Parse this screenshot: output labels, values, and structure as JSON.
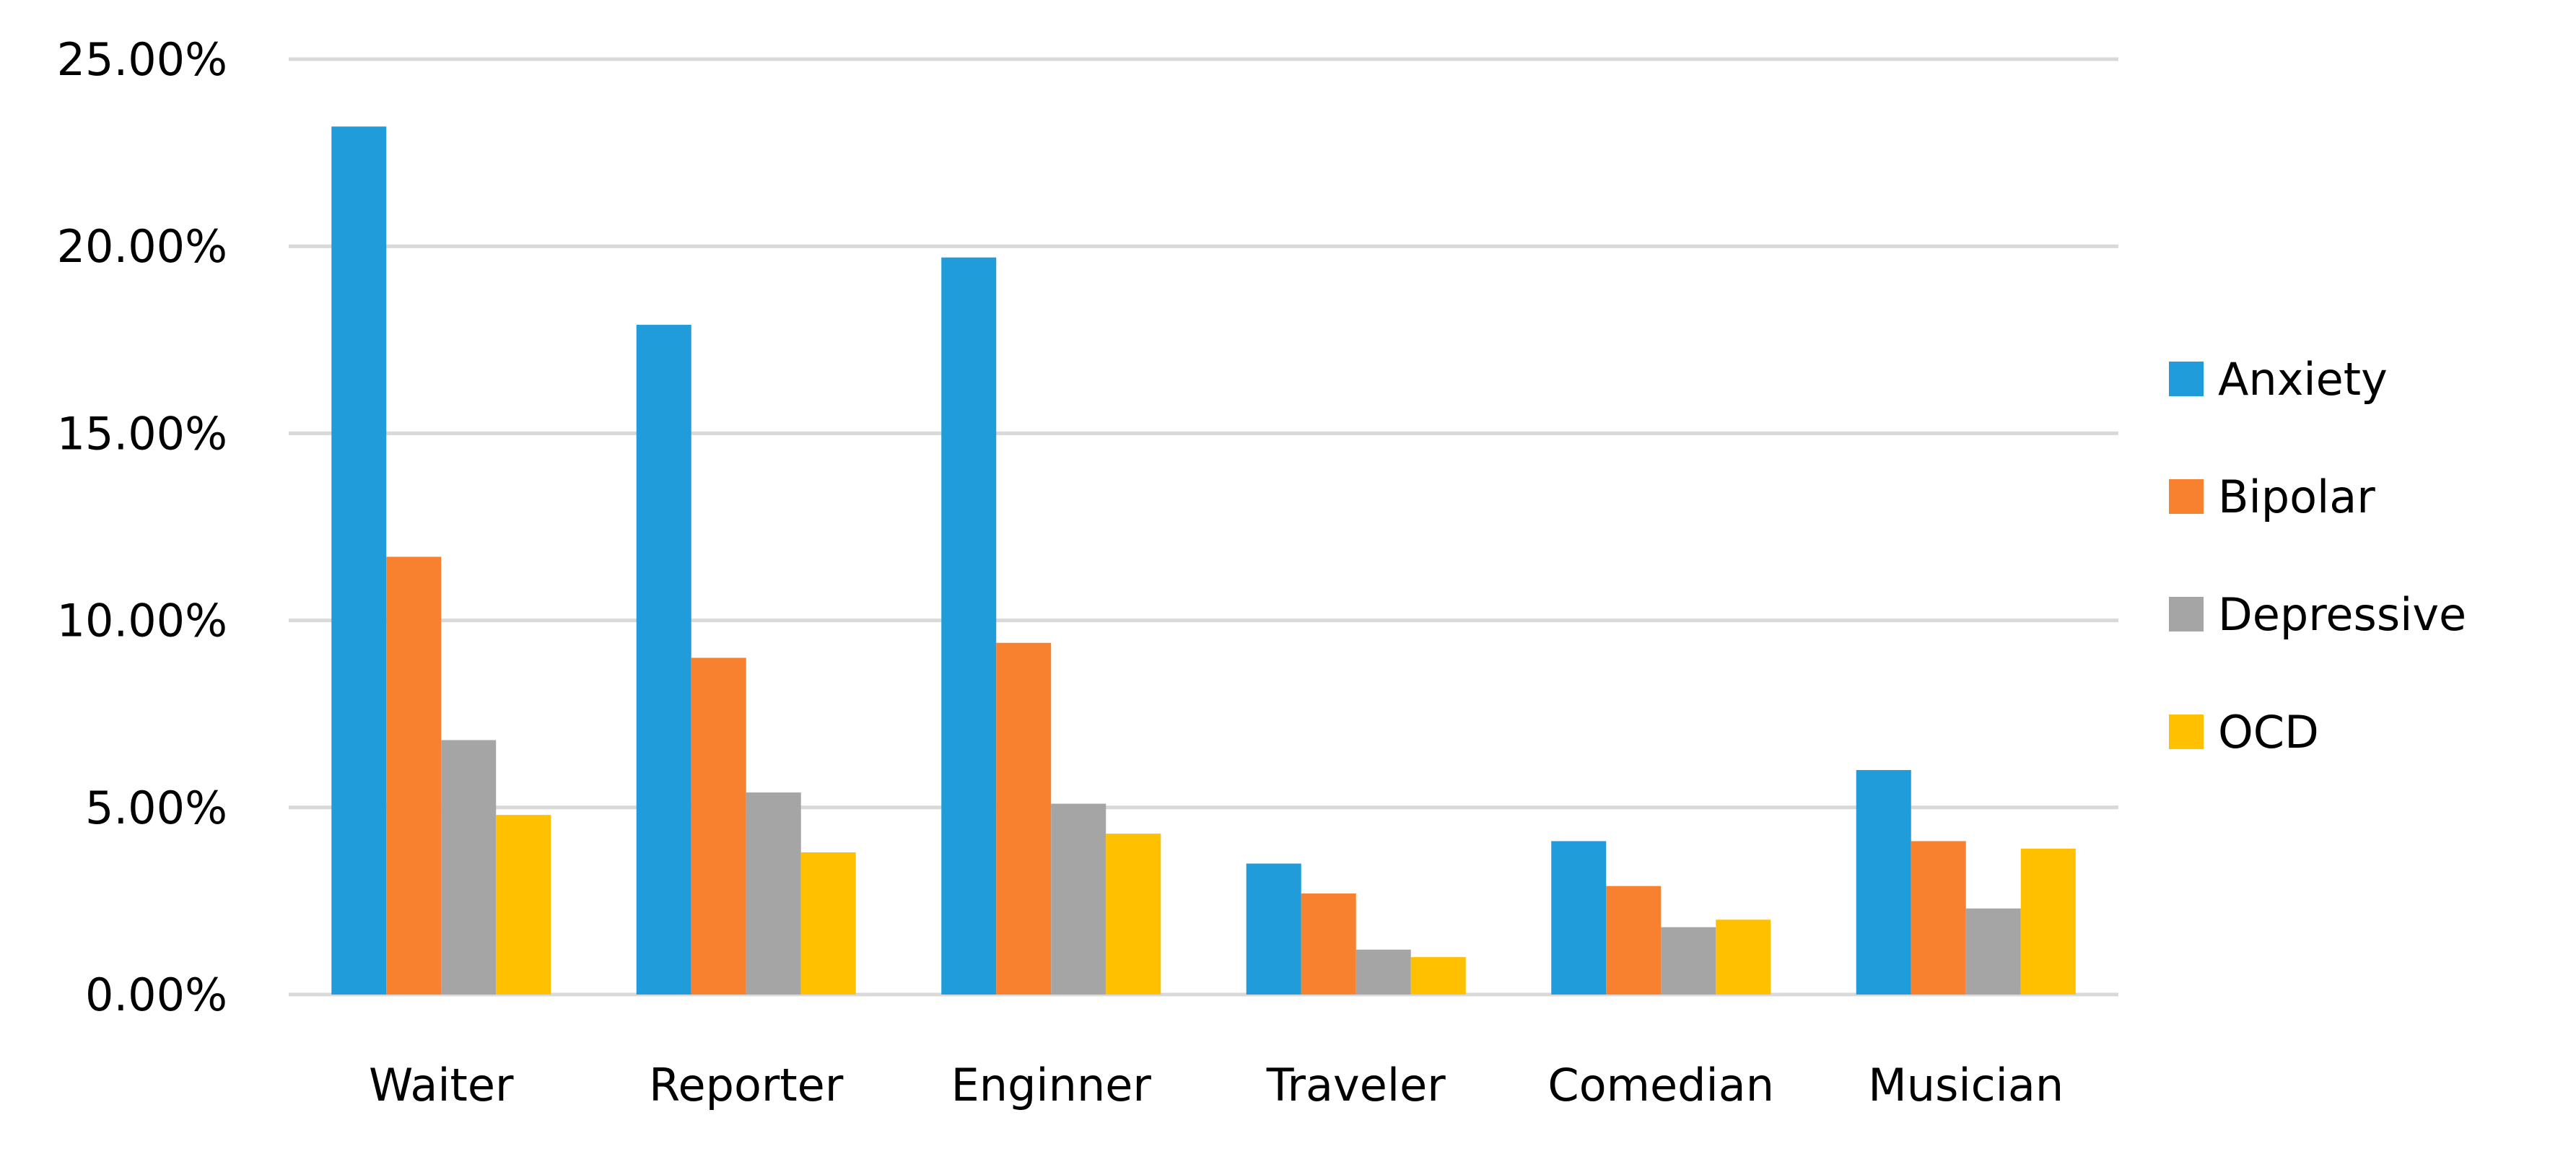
{
  "chart_data": {
    "type": "bar",
    "title": "",
    "xlabel": "",
    "ylabel": "",
    "categories": [
      "Waiter",
      "Reporter",
      "Enginner",
      "Traveler",
      "Comedian",
      "Musician"
    ],
    "series": [
      {
        "name": "Anxiety",
        "color": "#1f9cd9",
        "values": [
          23.2,
          17.9,
          19.7,
          3.5,
          4.1,
          6.0
        ]
      },
      {
        "name": "Bipolar",
        "color": "#f8812f",
        "values": [
          11.7,
          9.0,
          9.4,
          2.7,
          2.9,
          4.1
        ]
      },
      {
        "name": "Depressive",
        "color": "#a5a5a5",
        "values": [
          6.8,
          5.4,
          5.1,
          1.2,
          1.8,
          2.3
        ]
      },
      {
        "name": "OCD",
        "color": "#ffc000",
        "values": [
          4.8,
          3.8,
          4.3,
          1.0,
          2.0,
          3.9
        ]
      }
    ],
    "ylim": [
      0,
      25
    ],
    "yticks": [
      0,
      5,
      10,
      15,
      20,
      25
    ],
    "ytick_labels": [
      "0.00%",
      "5.00%",
      "10.00%",
      "15.00%",
      "20.00%",
      "25.00%"
    ],
    "grid": true,
    "legend_position": "right"
  }
}
